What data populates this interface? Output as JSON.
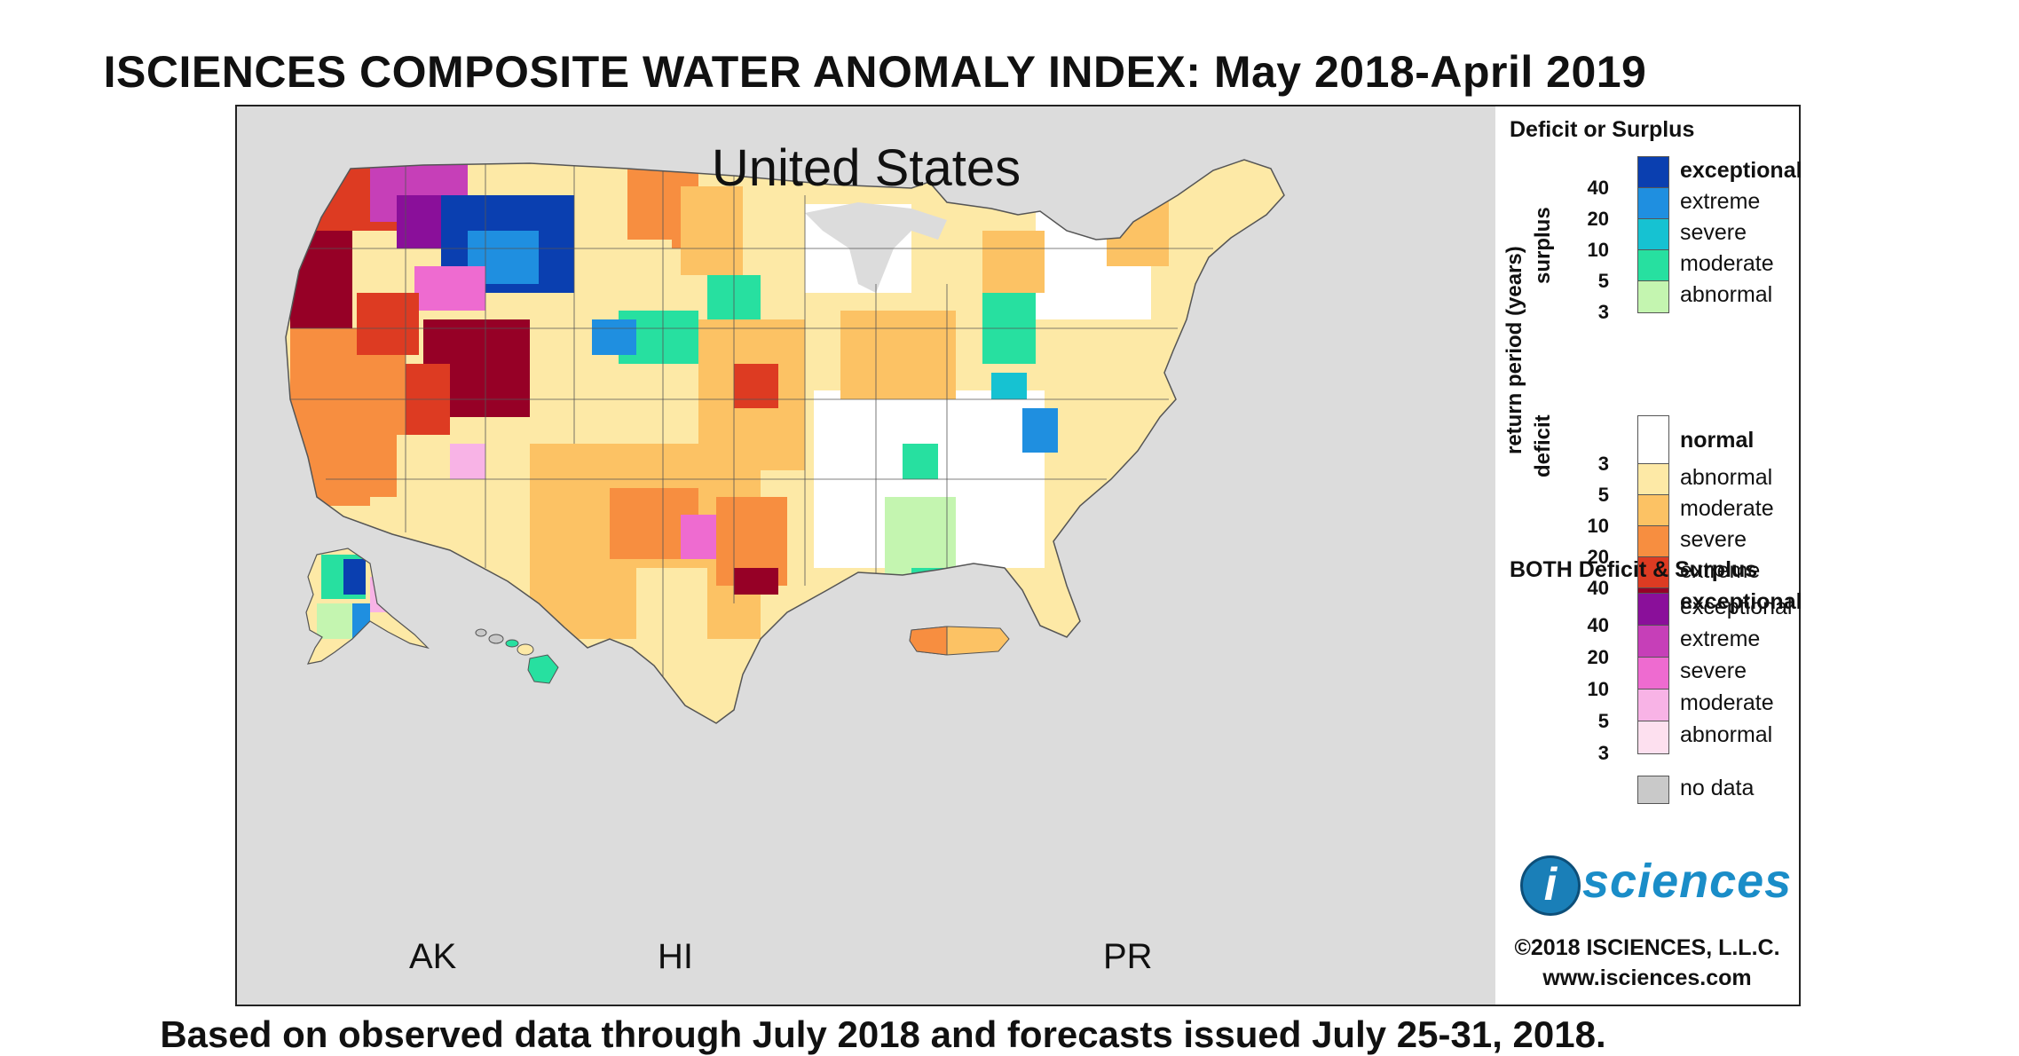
{
  "title": "ISCIENCES COMPOSITE WATER ANOMALY INDEX: May 2018-April 2019",
  "footer": "Based on observed data through July 2018 and forecasts issued July 25-31, 2018.",
  "map": {
    "title": "United States",
    "regions": {
      "ak": "AK",
      "hi": "HI",
      "pr": "PR"
    }
  },
  "legend": {
    "section1_heading": "Deficit or Surplus",
    "axis_label_main": "return period (years)",
    "axis_label_surplus": "surplus",
    "axis_label_deficit": "deficit",
    "surplus": [
      {
        "label": "exceptional",
        "color": "#0a3fb0",
        "bold": true
      },
      {
        "label": "extreme",
        "color": "#1f8fe0"
      },
      {
        "label": "severe",
        "color": "#16c2d2"
      },
      {
        "label": "moderate",
        "color": "#27e0a0"
      },
      {
        "label": "abnormal",
        "color": "#c4f5b0"
      }
    ],
    "surplus_ticks": [
      "40",
      "20",
      "10",
      "5",
      "3"
    ],
    "normal": {
      "label": "normal",
      "color": "#ffffff"
    },
    "deficit": [
      {
        "label": "abnormal",
        "color": "#fde9a6"
      },
      {
        "label": "moderate",
        "color": "#fcc264"
      },
      {
        "label": "severe",
        "color": "#f78e40"
      },
      {
        "label": "extreme",
        "color": "#dd3b22"
      },
      {
        "label": "exceptional",
        "color": "#960026",
        "bold": true
      }
    ],
    "deficit_ticks": [
      "3",
      "5",
      "10",
      "20",
      "40"
    ],
    "section2_heading": "BOTH Deficit & Surplus",
    "both": [
      {
        "label": "exceptional",
        "color": "#8a0f9a"
      },
      {
        "label": "extreme",
        "color": "#c63fb8"
      },
      {
        "label": "severe",
        "color": "#ee6bd0"
      },
      {
        "label": "moderate",
        "color": "#f8b3e6"
      },
      {
        "label": "abnormal",
        "color": "#fde0ef"
      }
    ],
    "both_ticks": [
      "40",
      "20",
      "10",
      "5",
      "3"
    ],
    "no_data": {
      "label": "no data",
      "color": "#c9c9c9"
    }
  },
  "branding": {
    "logo_letter": "i",
    "logo_text": "sciences",
    "copyright": "©2018 ISCIENCES, L.L.C.",
    "website": "www.isciences.com"
  }
}
